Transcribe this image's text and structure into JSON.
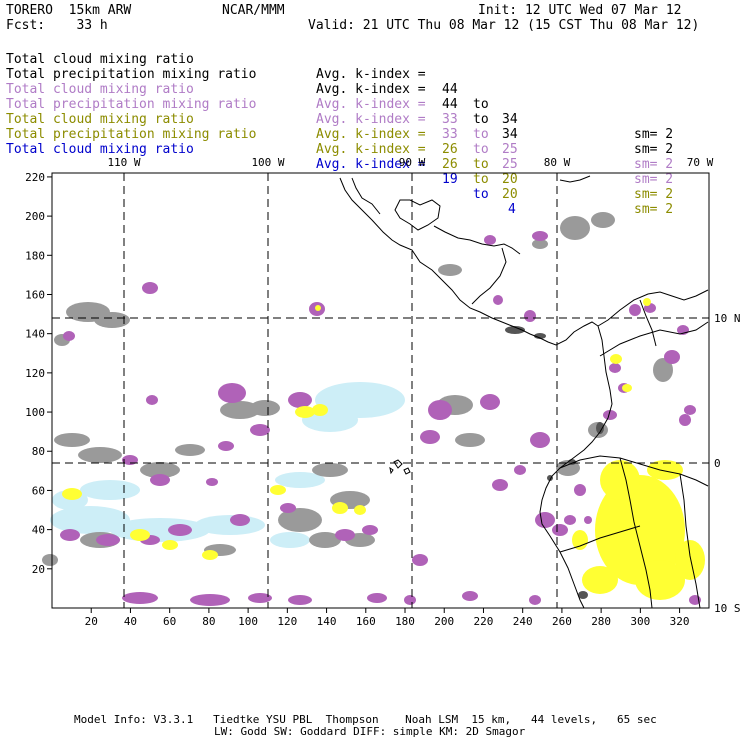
{
  "header": {
    "model": "TORERO  15km ARW",
    "org": "NCAR/MMM",
    "init": "Init: 12 UTC Wed 07 Mar 12",
    "fcst": "Fcst:    33 h",
    "valid": "Valid: 21 UTC Thu 08 Mar 12 (15 CST Thu 08 Mar 12)"
  },
  "legend": [
    {
      "field": "Total cloud mixing ratio",
      "kidx": "Avg. k-index =",
      "lo": "44",
      "to": "to",
      "hi": "34",
      "sm": "sm= 2",
      "color": "#000000"
    },
    {
      "field": "Total precipitation mixing ratio",
      "kidx": "Avg. k-index =",
      "lo": "44",
      "to": "to",
      "hi": "34",
      "sm": "sm= 2",
      "color": "#000000"
    },
    {
      "field": "Total cloud mixing ratio",
      "kidx": "Avg. k-index =",
      "lo": "33",
      "to": "to",
      "hi": "25",
      "sm": "sm= 2",
      "color": "#b07cc6"
    },
    {
      "field": "Total precipitation mixing ratio",
      "kidx": "Avg. k-index =",
      "lo": "33",
      "to": "to",
      "hi": "25",
      "sm": "sm= 2",
      "color": "#b07cc6"
    },
    {
      "field": "Total cloud mixing ratio",
      "kidx": "Avg. k-index =",
      "lo": "26",
      "to": "to",
      "hi": "20",
      "sm": "sm= 2",
      "color": "#8c8c00"
    },
    {
      "field": "Total precipitation mixing ratio",
      "kidx": "Avg. k-index =",
      "lo": "26",
      "to": "to",
      "hi": "20",
      "sm": "sm= 2",
      "color": "#8c8c00"
    },
    {
      "field": "Total cloud mixing ratio",
      "kidx": "Avg. k-index =",
      "lo": "19",
      "to": "to",
      "hi": "4",
      "sm": "",
      "color": "#0000cc"
    }
  ],
  "map": {
    "lon_labels": [
      "110 W",
      "100 W",
      "90 W",
      "80 W",
      "70 W"
    ],
    "lat_labels": [
      "10 N",
      "0",
      "10 S"
    ],
    "x_ticks": [
      "20",
      "40",
      "60",
      "80",
      "100",
      "120",
      "140",
      "160",
      "180",
      "200",
      "220",
      "240",
      "260",
      "280",
      "300",
      "320"
    ],
    "y_ticks": [
      "220",
      "200",
      "180",
      "160",
      "140",
      "120",
      "100",
      "80",
      "60",
      "40",
      "20"
    ],
    "colors": {
      "gray": "#9a9a9a",
      "purple": "#b062b8",
      "yellow": "#ffff33",
      "cyan": "#cdeef7",
      "dark": "#555555"
    }
  },
  "footer": {
    "line1": "Model Info: V3.3.1   Tiedtke YSU PBL  Thompson    Noah LSM  15 km,   44 levels,   65 sec",
    "line2": "LW: Godd SW: Goddard DIFF: simple KM: 2D Smagor"
  }
}
